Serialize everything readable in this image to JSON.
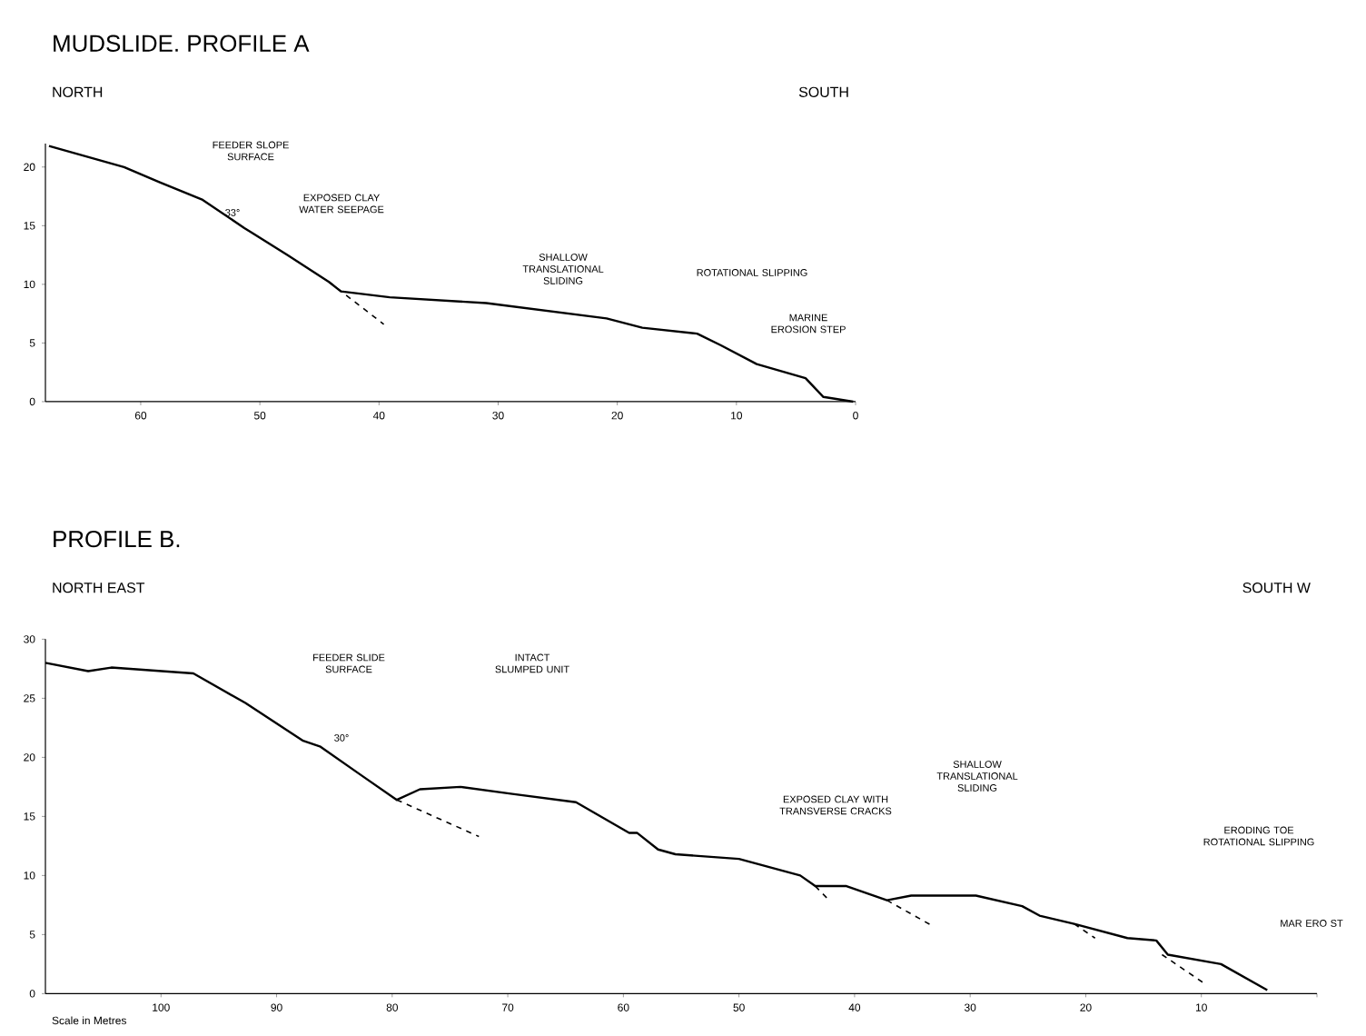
{
  "chart_data": [
    {
      "type": "line",
      "title": "MUDSLIDE. PROFILE A",
      "xlim": [
        68,
        0
      ],
      "ylim": [
        0,
        22
      ],
      "xticks": [
        60,
        50,
        40,
        30,
        20,
        10,
        0
      ],
      "yticks": [
        0,
        5,
        10,
        15,
        20
      ],
      "series": [
        {
          "color": "#000000",
          "line_style": "solid",
          "x": [
            67.7,
            61.4,
            58.4,
            54.8,
            51.3,
            47.7,
            44.2,
            43.2,
            39.1,
            31.0,
            20.9,
            17.9,
            13.3,
            11.3,
            8.3,
            4.2,
            2.7,
            0.2
          ],
          "values": [
            21.8,
            20.0,
            18.7,
            17.2,
            14.8,
            12.5,
            10.2,
            9.4,
            8.9,
            8.4,
            7.1,
            6.3,
            5.8,
            4.8,
            3.2,
            2.0,
            0.4,
            0
          ]
        },
        {
          "color": "#000000",
          "line_style": "dashed",
          "x": [
            44.2,
            39.6
          ],
          "values": [
            10.2,
            6.6
          ]
        }
      ],
      "annotations": [
        "NORTH",
        "SOUTH",
        "FEEDER SLOPE SURFACE",
        "33°",
        "EXPOSED CLAY WATER SEEPAGE",
        "SHALLOW TRANSLATIONAL SLIDING",
        "ROTATIONAL SLIPPING",
        "MARINE EROSION STEP"
      ]
    },
    {
      "type": "line",
      "title": "PROFILE B.",
      "xlabel": "Scale in Metres",
      "xlim": [
        110,
        0
      ],
      "ylim": [
        0,
        30
      ],
      "xticks": [
        100,
        90,
        80,
        70,
        60,
        50,
        40,
        30,
        20,
        10,
        {
          "value": 0,
          "label": null
        }
      ],
      "yticks": [
        0,
        5,
        10,
        15,
        20,
        25,
        30
      ],
      "series": [
        {
          "color": "#000000",
          "line_style": "solid",
          "x": [
            110.0,
            106.3,
            104.3,
            97.2,
            92.7,
            87.7,
            86.2,
            82.7,
            79.6,
            77.6,
            74.1,
            69.6,
            64.1,
            59.5,
            58.8,
            57.0,
            55.5,
            50.0,
            44.7,
            43.4,
            40.7,
            37.2,
            35.1,
            29.5,
            25.5,
            24.0,
            21.0,
            16.4,
            13.9,
            12.9,
            8.3,
            4.3
          ],
          "values": [
            28.0,
            27.3,
            27.6,
            27.1,
            24.6,
            21.4,
            20.9,
            18.5,
            16.4,
            17.3,
            17.5,
            16.9,
            16.2,
            13.6,
            13.6,
            12.2,
            11.8,
            11.4,
            10.0,
            9.1,
            9.1,
            7.9,
            8.3,
            8.3,
            7.4,
            6.6,
            5.9,
            4.7,
            4.5,
            3.3,
            2.5,
            0.3
          ]
        },
        {
          "color": "#000000",
          "line_style": "dashed",
          "x": [
            79.6,
            72.5
          ],
          "values": [
            16.4,
            13.3
          ]
        },
        {
          "color": "#000000",
          "line_style": "dashed",
          "x": [
            43.4,
            42.1
          ],
          "values": [
            9.1,
            7.8
          ]
        },
        {
          "color": "#000000",
          "line_style": "dashed",
          "x": [
            37.2,
            33.2
          ],
          "values": [
            7.9,
            5.7
          ]
        },
        {
          "color": "#000000",
          "line_style": "dashed",
          "x": [
            21.0,
            19.2
          ],
          "values": [
            5.9,
            4.7
          ]
        },
        {
          "color": "#000000",
          "line_style": "dashed",
          "x": [
            13.4,
            9.8
          ],
          "values": [
            3.3,
            0.9
          ]
        }
      ],
      "annotations": [
        "NORTH EAST",
        "SOUTH W",
        "FEEDER SLIDE SURFACE",
        "30°",
        "INTACT SLUMPED UNIT",
        "SHALLOW TRANSLATIONAL SLIDING",
        "EXPOSED CLAY WITH TRANSVERSE CRACKS",
        "ERODING TOE ROTATIONAL SLIPPING",
        "MAR ERO ST"
      ]
    }
  ]
}
